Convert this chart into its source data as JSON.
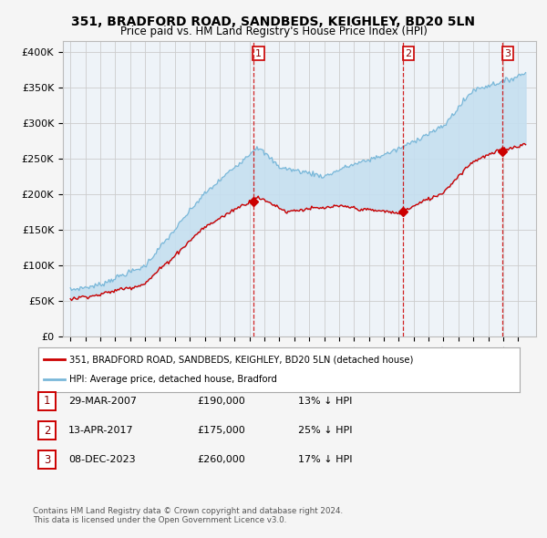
{
  "title": "351, BRADFORD ROAD, SANDBEDS, KEIGHLEY, BD20 5LN",
  "subtitle": "Price paid vs. HM Land Registry's House Price Index (HPI)",
  "ylabel_ticks": [
    "£0",
    "£50K",
    "£100K",
    "£150K",
    "£200K",
    "£250K",
    "£300K",
    "£350K",
    "£400K"
  ],
  "ytick_vals": [
    0,
    50000,
    100000,
    150000,
    200000,
    250000,
    300000,
    350000,
    400000
  ],
  "ylim": [
    0,
    415000
  ],
  "xlim_start": 1994.5,
  "xlim_end": 2026.2,
  "sale_dates": [
    2007.24,
    2017.28,
    2023.93
  ],
  "sale_prices": [
    190000,
    175000,
    260000
  ],
  "sale_labels": [
    "1",
    "2",
    "3"
  ],
  "vline_color": "#cc0000",
  "legend_line1": "351, BRADFORD ROAD, SANDBEDS, KEIGHLEY, BD20 5LN (detached house)",
  "legend_line2": "HPI: Average price, detached house, Bradford",
  "table_rows": [
    [
      "1",
      "29-MAR-2007",
      "£190,000",
      "13% ↓ HPI"
    ],
    [
      "2",
      "13-APR-2017",
      "£175,000",
      "25% ↓ HPI"
    ],
    [
      "3",
      "08-DEC-2023",
      "£260,000",
      "17% ↓ HPI"
    ]
  ],
  "footnote": "Contains HM Land Registry data © Crown copyright and database right 2024.\nThis data is licensed under the Open Government Licence v3.0.",
  "hpi_color": "#7ab8d9",
  "hpi_fill_color": "#c5dff0",
  "price_color": "#cc0000",
  "grid_color": "#cccccc",
  "bg_color": "#f5f5f5",
  "plot_bg": "#eef3f8"
}
